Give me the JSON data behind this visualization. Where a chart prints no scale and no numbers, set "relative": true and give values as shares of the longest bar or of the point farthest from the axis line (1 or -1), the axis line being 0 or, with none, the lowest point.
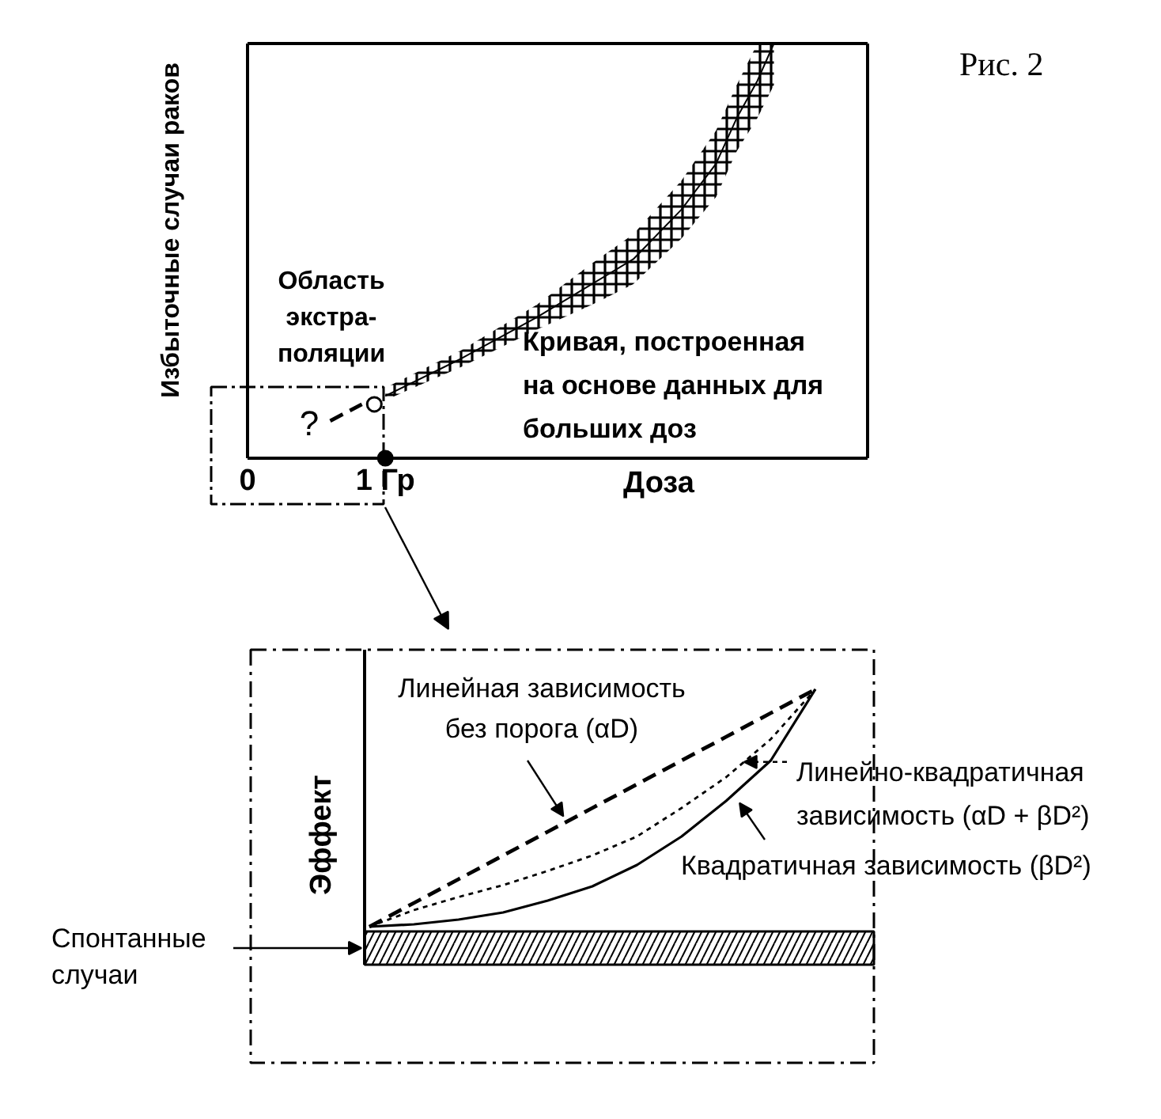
{
  "chart_data": [
    {
      "type": "line",
      "xlabel": "Доза",
      "ylabel": "Избыточные случаи раков",
      "relative": true,
      "xlim": [
        0,
        4.5
      ],
      "xticks": [
        0,
        {
          "value": 1,
          "label": "1 Гр"
        }
      ],
      "tick_labels": "x",
      "annotations": [
        "Рис. 2",
        "Область\nэкстра-\nполяции",
        "?"
      ],
      "series": [
        {
          "name": "Кривая, построенная\nна основе данных для\nбольших доз",
          "color": "#000000",
          "x": [
            1.0,
            1.55,
            2.1,
            2.5,
            2.8,
            3.15,
            3.4,
            3.55,
            3.7,
            3.82
          ],
          "values": [
            0.15,
            0.24,
            0.34,
            0.42,
            0.48,
            0.6,
            0.71,
            0.82,
            0.91,
            1.0
          ],
          "lower": [
            0.14,
            0.22,
            0.31,
            0.37,
            0.42,
            0.53,
            0.63,
            0.74,
            0.82,
            0.9
          ],
          "upper": [
            0.17,
            0.26,
            0.37,
            0.47,
            0.54,
            0.67,
            0.79,
            0.9,
            1.0,
            1.0
          ]
        },
        {
          "type": "line",
          "line_style": "dashed",
          "color": "#000000",
          "x": [
            0.6,
            0.83
          ],
          "values": [
            0.09,
            0.13
          ]
        },
        {
          "type": "scatter",
          "marker": "circle",
          "colors": [
            "#ffffff",
            "#000000"
          ],
          "x": [
            0.92,
            1.0
          ],
          "values": [
            0.13,
            0
          ]
        }
      ]
    },
    {
      "type": "line",
      "ylabel": "Эффект",
      "relative": true,
      "tick_labels": false,
      "categories": [
        null,
        null,
        null,
        null,
        null,
        null,
        null,
        null,
        null,
        null,
        null
      ],
      "series": [
        {
          "name": "Линейная зависимость\nбез порога (αD)",
          "color": "#000000",
          "line_style": "dashed",
          "values": [
            0,
            0.1,
            0.2,
            0.3,
            0.4,
            0.5,
            0.6,
            0.7,
            0.8,
            0.9,
            1.0
          ]
        },
        {
          "name": "Линейно-квадратичная\nзависимость (αD + βD²)",
          "color": "#000000",
          "line_style": "dotted",
          "values": [
            0,
            0.07,
            0.125,
            0.175,
            0.235,
            0.3,
            0.38,
            0.5,
            0.63,
            0.79,
            1.0
          ]
        },
        {
          "name": "Квадратичная зависимость (βD²)",
          "color": "#000000",
          "line_style": "solid",
          "values": [
            0,
            0.01,
            0.03,
            0.06,
            0.11,
            0.17,
            0.26,
            0.38,
            0.53,
            0.7,
            1.0
          ]
        }
      ],
      "bands": [
        {
          "axis": "y",
          "from": -0.16,
          "to": -0.02,
          "label": "Спонтанные\nслучаи",
          "color": "#000000"
        }
      ]
    }
  ]
}
